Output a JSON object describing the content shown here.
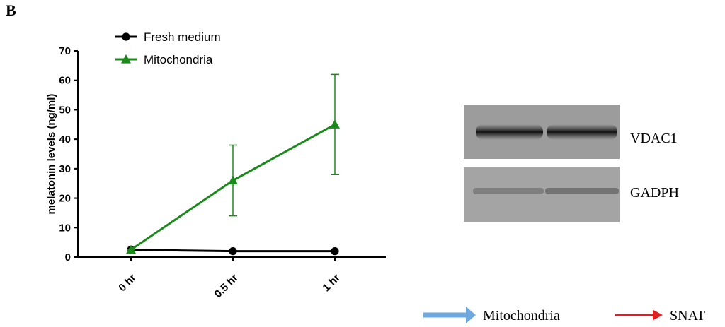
{
  "panel_label": "B",
  "chart_data": {
    "type": "line",
    "y_label": "melatonin levels (ng/ml)",
    "categories": [
      "0 hr",
      "0.5 hr",
      "1 hr"
    ],
    "series": [
      {
        "name": "Fresh medium",
        "color": "#000000",
        "marker": "circle",
        "values": [
          2.5,
          2,
          2
        ]
      },
      {
        "name": "Mitochondria",
        "color": "#1a8a1a",
        "marker": "triangle",
        "values": [
          2.5,
          26,
          45
        ],
        "errors": [
          0,
          12,
          17
        ]
      }
    ],
    "ylim": [
      0,
      70
    ],
    "yticks": [
      0,
      10,
      20,
      30,
      40,
      50,
      60,
      70
    ],
    "grid": false
  },
  "blot": {
    "labels": [
      "VDAC1",
      "GADPH"
    ]
  },
  "arrow_legend": [
    {
      "label": "Mitochondria",
      "color": "#6fa8dc"
    },
    {
      "label": "SNAT",
      "color": "#e02020"
    }
  ]
}
